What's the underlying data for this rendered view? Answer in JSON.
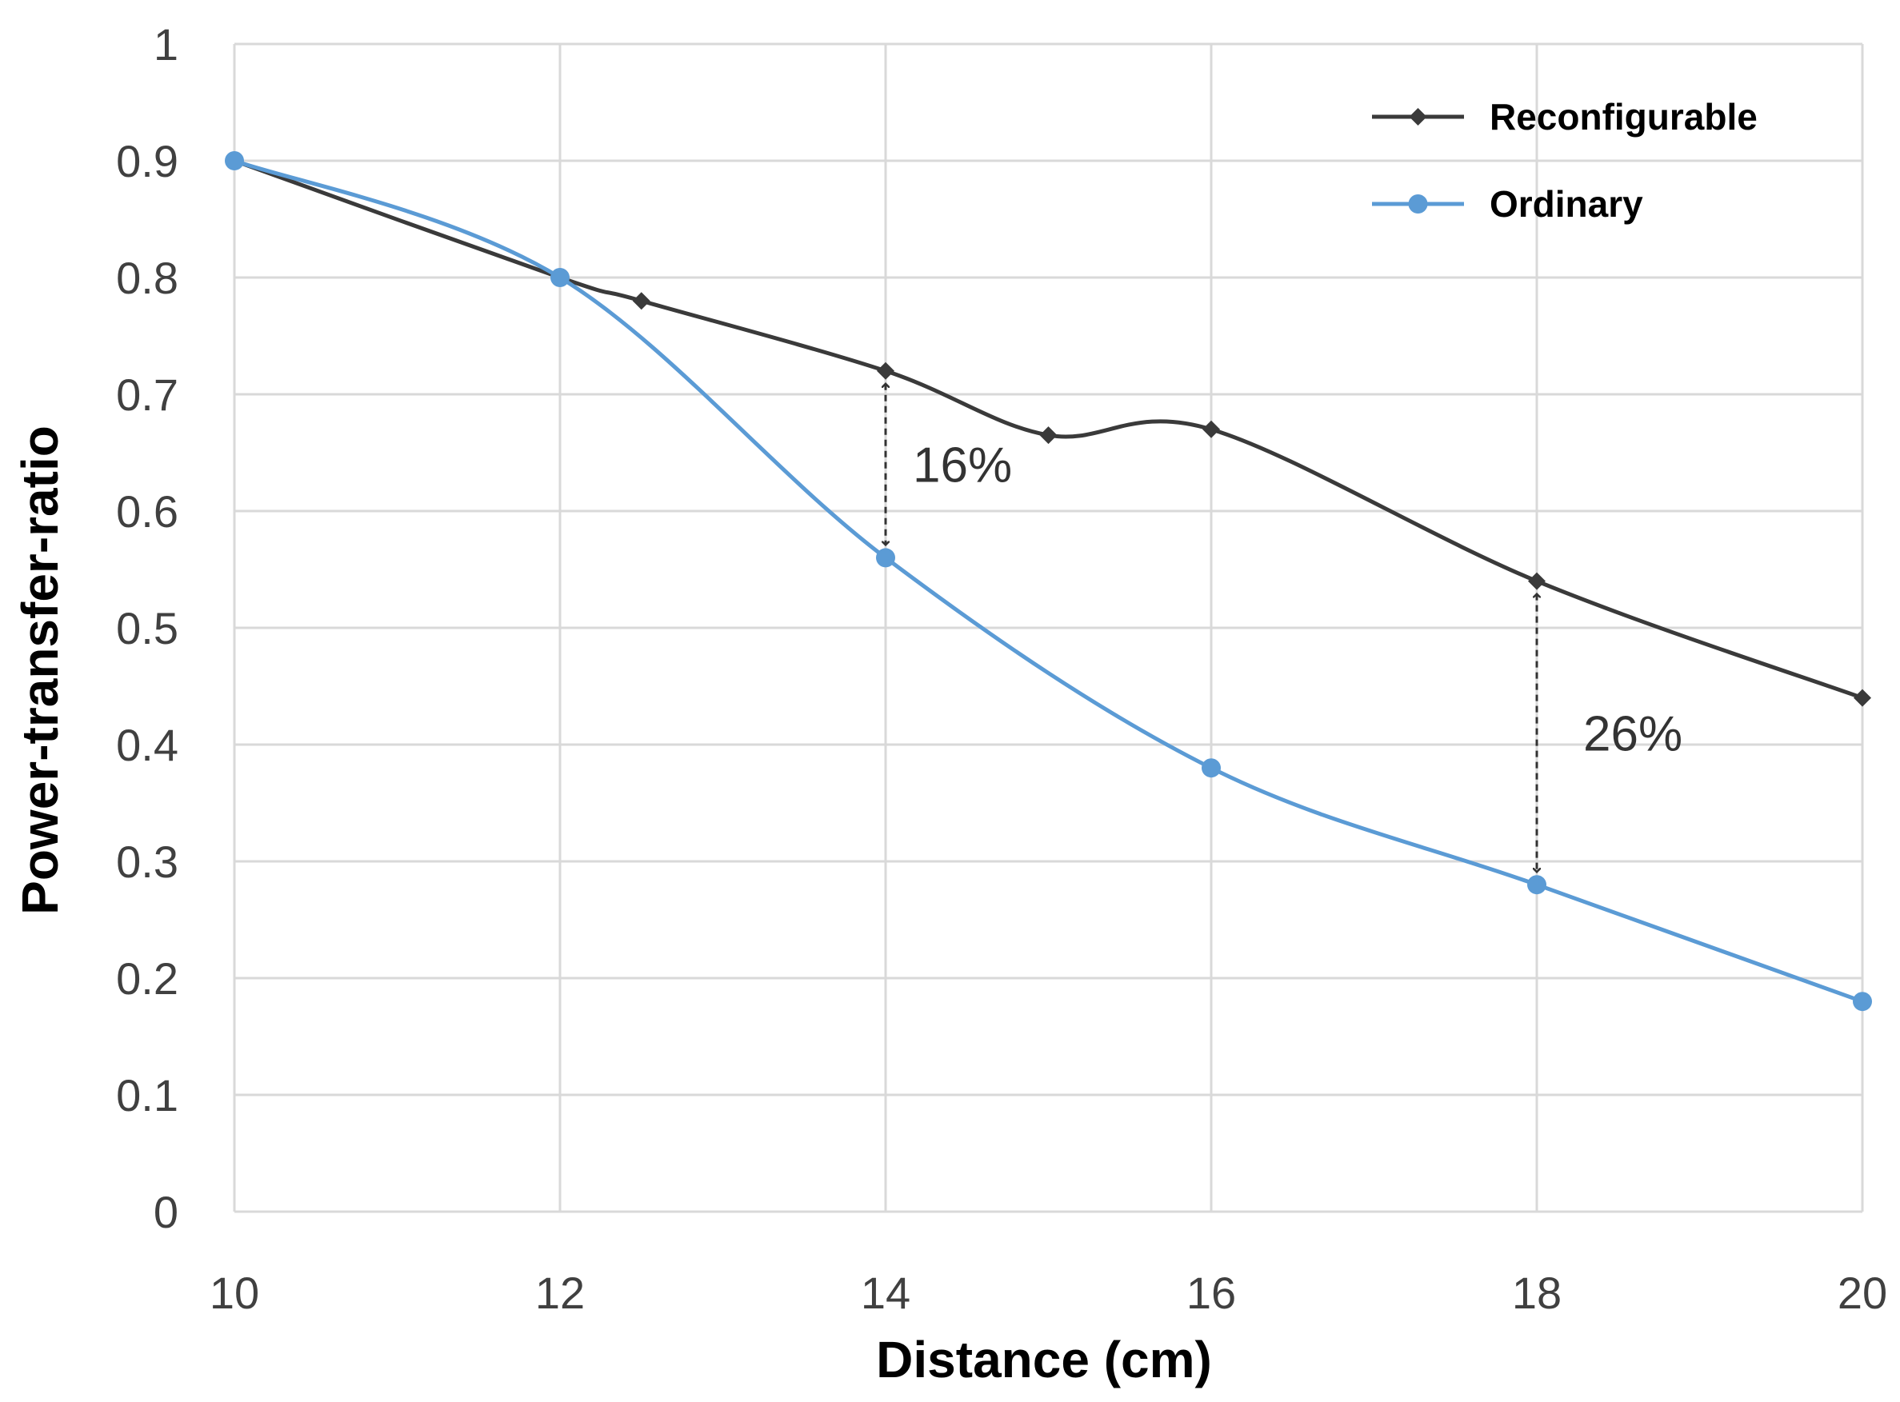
{
  "chart_data": {
    "type": "line",
    "xlabel": "Distance (cm)",
    "ylabel": "Power-transfer-ratio",
    "xlim": [
      10,
      20
    ],
    "ylim": [
      0,
      1
    ],
    "x_ticks": [
      "10",
      "12",
      "14",
      "16",
      "18",
      "20"
    ],
    "y_ticks": [
      "0",
      "0.1",
      "0.2",
      "0.3",
      "0.4",
      "0.5",
      "0.6",
      "0.7",
      "0.8",
      "0.9",
      "1"
    ],
    "grid": true,
    "legend_position": "top-right",
    "series": [
      {
        "name": "Reconfigurable",
        "color": "#3a3a3a",
        "marker": "diamond",
        "x": [
          10,
          12,
          12.5,
          14,
          15,
          16,
          18,
          20
        ],
        "y": [
          0.9,
          0.8,
          0.78,
          0.72,
          0.665,
          0.67,
          0.54,
          0.44
        ]
      },
      {
        "name": "Ordinary",
        "color": "#5b9bd5",
        "marker": "circle",
        "x": [
          10,
          12,
          14,
          16,
          18,
          20
        ],
        "y": [
          0.9,
          0.8,
          0.56,
          0.38,
          0.28,
          0.18
        ]
      }
    ],
    "annotations": [
      {
        "label": "16%",
        "x": 14,
        "y_from": 0.56,
        "y_to": 0.72
      },
      {
        "label": "26%",
        "x": 18,
        "y_from": 0.28,
        "y_to": 0.54
      }
    ]
  }
}
